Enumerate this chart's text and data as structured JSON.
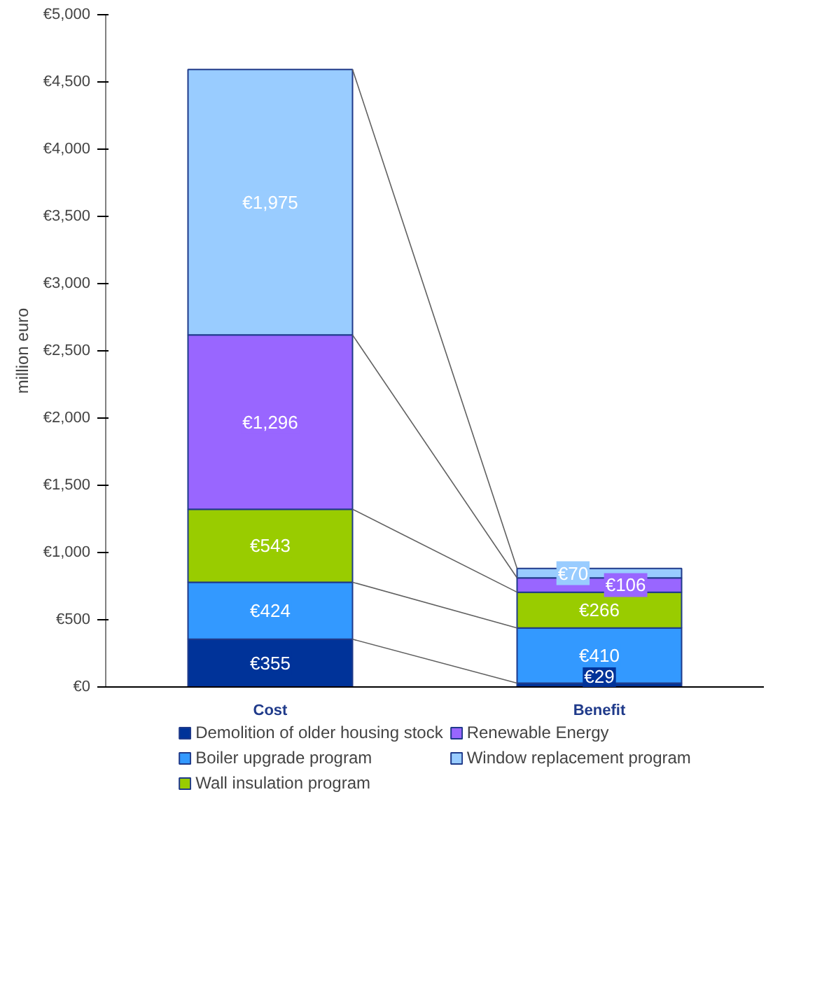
{
  "chart_data": {
    "type": "bar",
    "stacked": true,
    "ylabel": "million euro",
    "categories": [
      "Cost",
      "Benefit"
    ],
    "series": [
      {
        "name": "Demolition of older housing stock",
        "color": "#003399",
        "values": [
          355,
          29
        ],
        "value_labels": [
          "€355",
          "€29"
        ]
      },
      {
        "name": "Boiler upgrade program",
        "color": "#3399ff",
        "values": [
          424,
          410
        ],
        "value_labels": [
          "€424",
          "€410"
        ]
      },
      {
        "name": "Wall insulation program",
        "color": "#99cc00",
        "values": [
          543,
          266
        ],
        "value_labels": [
          "€543",
          "€266"
        ]
      },
      {
        "name": "Renewable Energy",
        "color": "#9966ff",
        "values": [
          1296,
          106
        ],
        "value_labels": [
          "€1,296",
          "€106"
        ]
      },
      {
        "name": "Window replacement program",
        "color": "#99ccff",
        "values": [
          1975,
          70
        ],
        "value_labels": [
          "€1,975",
          "€70"
        ]
      }
    ],
    "ylim": [
      0,
      5000
    ],
    "yticks": [
      {
        "value": 0,
        "label": "€0"
      },
      {
        "value": 500,
        "label": "€500"
      },
      {
        "value": 1000,
        "label": "€1,000"
      },
      {
        "value": 1500,
        "label": "€1,500"
      },
      {
        "value": 2000,
        "label": "€2,000"
      },
      {
        "value": 2500,
        "label": "€2,500"
      },
      {
        "value": 3000,
        "label": "€3,000"
      },
      {
        "value": 3500,
        "label": "€3,500"
      },
      {
        "value": 4000,
        "label": "€4,000"
      },
      {
        "value": 4500,
        "label": "€4,500"
      },
      {
        "value": 5000,
        "label": "€5,000"
      }
    ],
    "grid": false,
    "legend": "bottom"
  }
}
